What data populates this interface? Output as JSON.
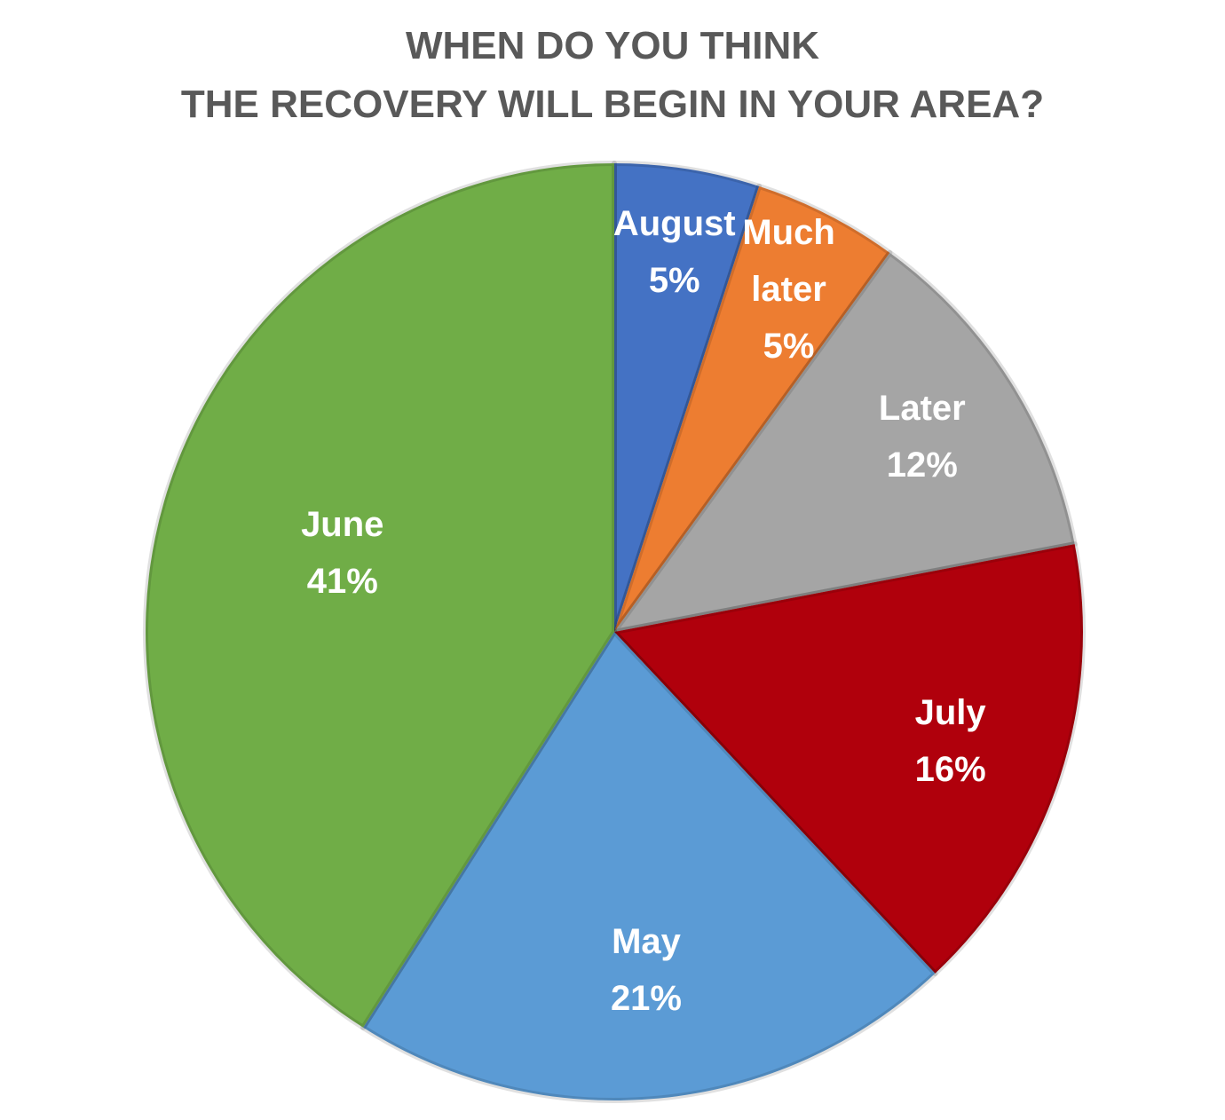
{
  "chart_data": {
    "type": "pie",
    "title": [
      "WHEN DO YOU THINK",
      "THE RECOVERY WILL BEGIN IN YOUR AREA?"
    ],
    "categories": [
      "August",
      "Much later",
      "Later",
      "July",
      "May",
      "June"
    ],
    "values": [
      5,
      5,
      12,
      16,
      21,
      41
    ],
    "value_labels": [
      "5%",
      "5%",
      "12%",
      "16%",
      "21%",
      "41%"
    ],
    "colors": [
      "#4472c4",
      "#ed7d31",
      "#a5a5a5",
      "#b0000c",
      "#5b9bd5",
      "#70ad47"
    ]
  }
}
